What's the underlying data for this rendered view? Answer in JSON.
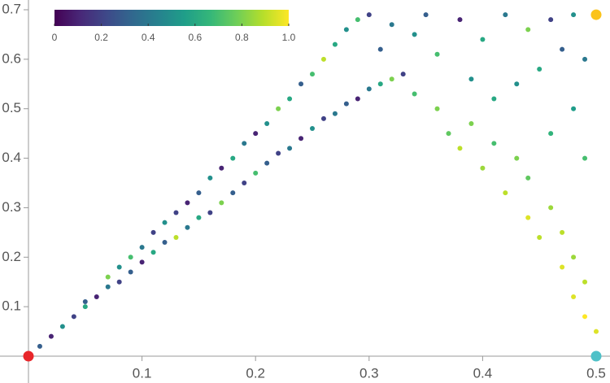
{
  "chart_data": {
    "type": "scatter",
    "xlim": [
      0,
      0.5
    ],
    "ylim": [
      0,
      0.7
    ],
    "xticks": [
      0.1,
      0.2,
      0.3,
      0.4,
      0.5
    ],
    "yticks": [
      0.1,
      0.2,
      0.3,
      0.4,
      0.5,
      0.6,
      0.7
    ],
    "colormap": [
      "#440154",
      "#482878",
      "#3e4989",
      "#31688e",
      "#26828e",
      "#1f9e89",
      "#35b779",
      "#6ece58",
      "#b5de2b",
      "#fde725"
    ],
    "clim": [
      0,
      1
    ],
    "cticks": [
      0,
      0.2,
      0.4,
      0.6,
      0.8,
      {
        "value": 1,
        "label": "1.0"
      }
    ],
    "x": [
      0.01,
      0.02,
      0.03,
      0.04,
      0.05,
      0.05,
      0.06,
      0.07,
      0.07,
      0.08,
      0.08,
      0.09,
      0.09,
      0.1,
      0.1,
      0.11,
      0.11,
      0.12,
      0.12,
      0.13,
      0.13,
      0.14,
      0.14,
      0.15,
      0.15,
      0.16,
      0.16,
      0.17,
      0.17,
      0.18,
      0.18,
      0.19,
      0.19,
      0.2,
      0.2,
      0.21,
      0.21,
      0.22,
      0.22,
      0.23,
      0.23,
      0.24,
      0.24,
      0.25,
      0.25,
      0.26,
      0.26,
      0.27,
      0.27,
      0.28,
      0.28,
      0.29,
      0.29,
      0.3,
      0.3,
      0.31,
      0.31,
      0.32,
      0.32,
      0.33,
      0.34,
      0.35,
      0.36,
      0.38,
      0.4,
      0.42,
      0.44,
      0.46,
      0.48,
      0.47,
      0.45,
      0.43,
      0.49,
      0.34,
      0.36,
      0.37,
      0.38,
      0.39,
      0.4,
      0.41,
      0.42,
      0.43,
      0.44,
      0.44,
      0.45,
      0.46,
      0.47,
      0.47,
      0.48,
      0.48,
      0.49,
      0.49,
      0.5,
      0.41,
      0.46,
      0.49,
      0.48,
      0.39
    ],
    "y": [
      0.02,
      0.04,
      0.06,
      0.08,
      0.1,
      0.11,
      0.12,
      0.14,
      0.16,
      0.15,
      0.18,
      0.17,
      0.2,
      0.19,
      0.22,
      0.21,
      0.25,
      0.23,
      0.27,
      0.24,
      0.29,
      0.26,
      0.31,
      0.28,
      0.33,
      0.29,
      0.36,
      0.31,
      0.38,
      0.33,
      0.4,
      0.35,
      0.43,
      0.37,
      0.45,
      0.39,
      0.47,
      0.41,
      0.5,
      0.42,
      0.52,
      0.44,
      0.55,
      0.46,
      0.57,
      0.48,
      0.6,
      0.49,
      0.63,
      0.51,
      0.66,
      0.52,
      0.68,
      0.54,
      0.69,
      0.55,
      0.62,
      0.56,
      0.67,
      0.57,
      0.65,
      0.69,
      0.61,
      0.68,
      0.64,
      0.69,
      0.66,
      0.68,
      0.69,
      0.62,
      0.58,
      0.55,
      0.6,
      0.53,
      0.5,
      0.45,
      0.42,
      0.47,
      0.38,
      0.43,
      0.33,
      0.4,
      0.28,
      0.36,
      0.24,
      0.3,
      0.18,
      0.25,
      0.12,
      0.2,
      0.08,
      0.15,
      0.05,
      0.52,
      0.45,
      0.4,
      0.5,
      0.56
    ],
    "c": [
      0.3,
      0.1,
      0.5,
      0.2,
      0.6,
      0.3,
      0.1,
      0.4,
      0.8,
      0.2,
      0.5,
      0.3,
      0.7,
      0.1,
      0.4,
      0.6,
      0.2,
      0.3,
      0.5,
      0.9,
      0.2,
      0.4,
      0.1,
      0.6,
      0.3,
      0.2,
      0.5,
      0.8,
      0.1,
      0.3,
      0.6,
      0.2,
      0.4,
      0.7,
      0.1,
      0.3,
      0.5,
      0.2,
      0.8,
      0.4,
      0.6,
      0.1,
      0.3,
      0.5,
      0.7,
      0.2,
      0.9,
      0.4,
      0.6,
      0.3,
      0.5,
      0.1,
      0.7,
      0.4,
      0.2,
      0.6,
      0.3,
      0.8,
      0.4,
      0.2,
      0.5,
      0.3,
      0.7,
      0.1,
      0.6,
      0.4,
      0.8,
      0.2,
      0.5,
      0.3,
      0.6,
      0.5,
      0.4,
      0.7,
      0.8,
      0.75,
      0.9,
      0.8,
      0.85,
      0.7,
      0.9,
      0.8,
      0.95,
      0.75,
      0.9,
      0.85,
      0.95,
      0.9,
      0.95,
      0.85,
      1.0,
      0.9,
      0.95,
      0.6,
      0.65,
      0.7,
      0.55,
      0.5
    ],
    "highlights": [
      {
        "x": 0,
        "y": 0,
        "color": "#e8262a"
      },
      {
        "x": 0.5,
        "y": 0.69,
        "color": "#fbc31a"
      },
      {
        "x": 0.5,
        "y": 0,
        "color": "#4fc1c8"
      }
    ]
  }
}
